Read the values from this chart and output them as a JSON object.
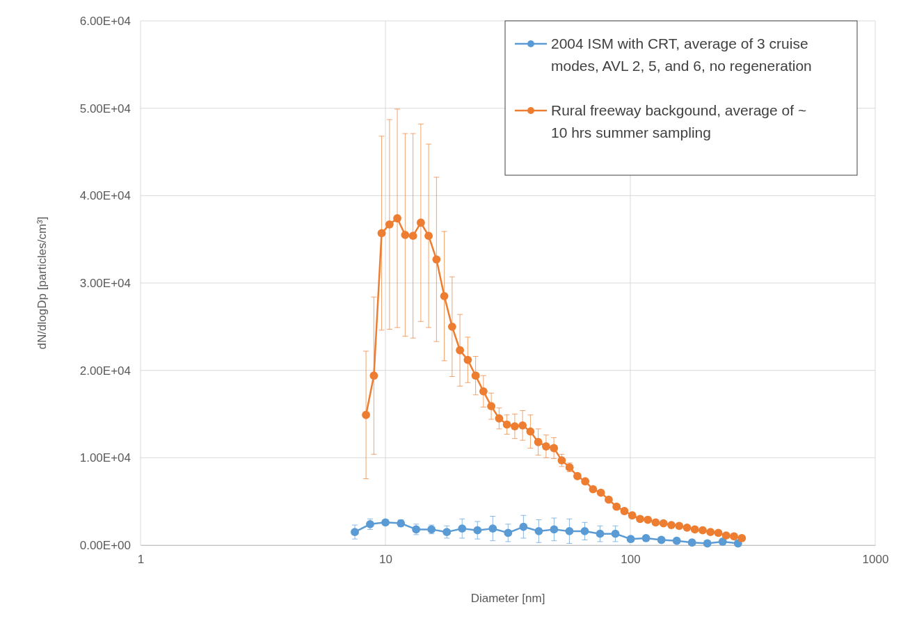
{
  "chart_data": {
    "type": "line",
    "xlabel": "Diameter [nm]",
    "ylabel": "dN/dlogDp [particles/cm³]",
    "log": "x",
    "xlim": [
      1,
      1000
    ],
    "xticks": [
      1,
      10,
      100,
      1000
    ],
    "ylim": [
      0,
      60000
    ],
    "yticks": [
      {
        "value": 0,
        "label": "0.00E+00"
      },
      {
        "value": 10000,
        "label": "1.00E+04"
      },
      {
        "value": 20000,
        "label": "2.00E+04"
      },
      {
        "value": 30000,
        "label": "3.00E+04"
      },
      {
        "value": 40000,
        "label": "4.00E+04"
      },
      {
        "value": 50000,
        "label": "5.00E+04"
      },
      {
        "value": 60000,
        "label": "6.00E+04"
      }
    ],
    "grid": true,
    "legend": "top right",
    "marker": "circle",
    "line_style": "solid",
    "series": [
      {
        "name": "2004 ISM with CRT, average of 3 cruise modes, AVL 2, 5, and 6, no regeneration",
        "color": "#5b9bd5",
        "x": [
          7.5,
          8.66,
          10.0,
          11.56,
          13.35,
          15.42,
          17.81,
          20.57,
          23.76,
          27.44,
          31.69,
          36.61,
          42.28,
          48.83,
          56.4,
          65.15,
          75.24,
          86.91,
          100.4,
          115.9,
          133.9,
          154.7,
          178.6,
          206.3,
          238.3,
          275.2
        ],
        "values": [
          1500,
          2400,
          2600,
          2500,
          1800,
          1800,
          1500,
          1900,
          1700,
          1900,
          1400,
          2100,
          1600,
          1800,
          1600,
          1600,
          1300,
          1300,
          700,
          800,
          600,
          500,
          300,
          200,
          400,
          200
        ],
        "errors": [
          800,
          600,
          300,
          400,
          600,
          500,
          700,
          1100,
          1000,
          1400,
          1000,
          1300,
          1300,
          1300,
          1400,
          1000,
          900,
          900,
          null,
          300,
          null,
          null,
          null,
          null,
          null,
          null
        ]
      },
      {
        "name": "Rural freeway backgound, average of ~ 10 hrs summer sampling",
        "color": "#ed7d31",
        "x": [
          8.33,
          8.97,
          9.65,
          10.39,
          11.18,
          12.04,
          12.96,
          13.95,
          15.01,
          16.16,
          17.39,
          18.72,
          20.15,
          21.69,
          23.35,
          25.13,
          27.05,
          29.12,
          31.34,
          33.74,
          36.31,
          39.09,
          42.07,
          45.29,
          48.75,
          52.47,
          56.48,
          60.8,
          65.44,
          70.44,
          75.83,
          81.62,
          87.86,
          94.57,
          101.8,
          109.6,
          117.9,
          126.9,
          136.6,
          147.1,
          158.3,
          170.4,
          183.4,
          197.4,
          212.5,
          228.8,
          246.2,
          265.1,
          285.3
        ],
        "values": [
          14900,
          19400,
          35700,
          36700,
          37400,
          35500,
          35400,
          36900,
          35400,
          32700,
          28500,
          25000,
          22300,
          21200,
          19400,
          17600,
          15900,
          14500,
          13800,
          13600,
          13700,
          13000,
          11800,
          11300,
          11100,
          9700,
          8900,
          7900,
          7300,
          6400,
          6000,
          5200,
          4400,
          3900,
          3400,
          3000,
          2900,
          2600,
          2500,
          2300,
          2200,
          2000,
          1800,
          1700,
          1500,
          1400,
          1100,
          1000,
          800
        ],
        "errors": [
          7300,
          9000,
          11100,
          12000,
          12500,
          11600,
          11700,
          11300,
          10500,
          9400,
          7400,
          5700,
          4100,
          2600,
          2200,
          1800,
          1500,
          1200,
          1100,
          1400,
          1700,
          1900,
          1500,
          1300,
          1200,
          700,
          500,
          null,
          null,
          null,
          null,
          null,
          null,
          null,
          null,
          null,
          null,
          null,
          null,
          null,
          null,
          null,
          null,
          null,
          null,
          null,
          null,
          null,
          null
        ]
      }
    ]
  }
}
